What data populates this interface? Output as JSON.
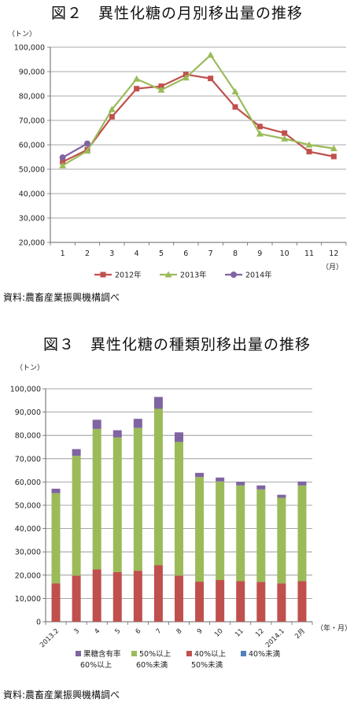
{
  "figure2": {
    "title": "図２　異性化糖の月別移出量の推移",
    "source": "資料:農畜産業振興機構調べ",
    "chart_data": {
      "type": "line",
      "unit_label": "（トン）",
      "x_unit_label": "（月）",
      "categories": [
        "1",
        "2",
        "3",
        "4",
        "5",
        "6",
        "7",
        "8",
        "9",
        "10",
        "11",
        "12"
      ],
      "ylim": [
        20000,
        100000
      ],
      "yticks": [
        "20,000",
        "30,000",
        "40,000",
        "50,000",
        "60,000",
        "70,000",
        "80,000",
        "90,000",
        "100,000"
      ],
      "grid": true,
      "legend_position": "bottom",
      "series": [
        {
          "name": "2012年",
          "color": "#c0504d",
          "marker": "square",
          "values": [
            53000,
            58000,
            71500,
            83000,
            84000,
            88800,
            87200,
            75500,
            67500,
            64800,
            57200,
            55200
          ]
        },
        {
          "name": "2013年",
          "color": "#9bbb59",
          "marker": "triangle",
          "values": [
            51500,
            57500,
            74500,
            87000,
            82500,
            87500,
            96800,
            81800,
            64500,
            62500,
            60000,
            58500
          ]
        },
        {
          "name": "2014年",
          "color": "#8064a2",
          "marker": "circle",
          "values": [
            54800,
            60500,
            null,
            null,
            null,
            null,
            null,
            null,
            null,
            null,
            null,
            null
          ]
        }
      ]
    }
  },
  "figure3": {
    "title": "図３　異性化糖の種類別移出量の推移",
    "source": "資料:農畜産業振興機構調べ",
    "chart_data": {
      "type": "bar",
      "stacked": true,
      "unit_label": "（トン）",
      "x_unit_label": "（年・月）",
      "categories": [
        "2013.2",
        "3",
        "4",
        "5",
        "6",
        "7",
        "8",
        "9",
        "10",
        "11",
        "12",
        "2014.1",
        "2月"
      ],
      "ylim": [
        0,
        100000
      ],
      "yticks": [
        "0",
        "10,000",
        "20,000",
        "30,000",
        "40,000",
        "50,000",
        "60,000",
        "70,000",
        "80,000",
        "90,000",
        "100,000"
      ],
      "grid": true,
      "legend_position": "bottom",
      "series": [
        {
          "name": "40%未満",
          "color": "#4f81bd",
          "values": [
            0,
            0,
            0,
            0,
            0,
            0,
            0,
            0,
            0,
            0,
            0,
            0,
            0
          ]
        },
        {
          "name": "40%以上\n50%未満",
          "color": "#c0504d",
          "values": [
            16500,
            19800,
            22500,
            21300,
            21900,
            24300,
            19800,
            17200,
            17900,
            17400,
            17100,
            16500,
            17400
          ]
        },
        {
          "name": "50%以上\n60%未満",
          "color": "#9bbb59",
          "values": [
            38700,
            51400,
            60300,
            57800,
            61300,
            67100,
            57400,
            44900,
            42300,
            41100,
            39700,
            36700,
            41100
          ]
        },
        {
          "name": "果糖含有率\n60%以上",
          "color": "#8064a2",
          "values": [
            1900,
            2900,
            3900,
            3100,
            3900,
            5100,
            4100,
            1800,
            1700,
            1500,
            1700,
            1300,
            1700
          ]
        }
      ],
      "legend_order": [
        "果糖含有率\n60%以上",
        "50%以上\n60%未満",
        "40%以上\n50%未満",
        "40%未満"
      ]
    }
  }
}
